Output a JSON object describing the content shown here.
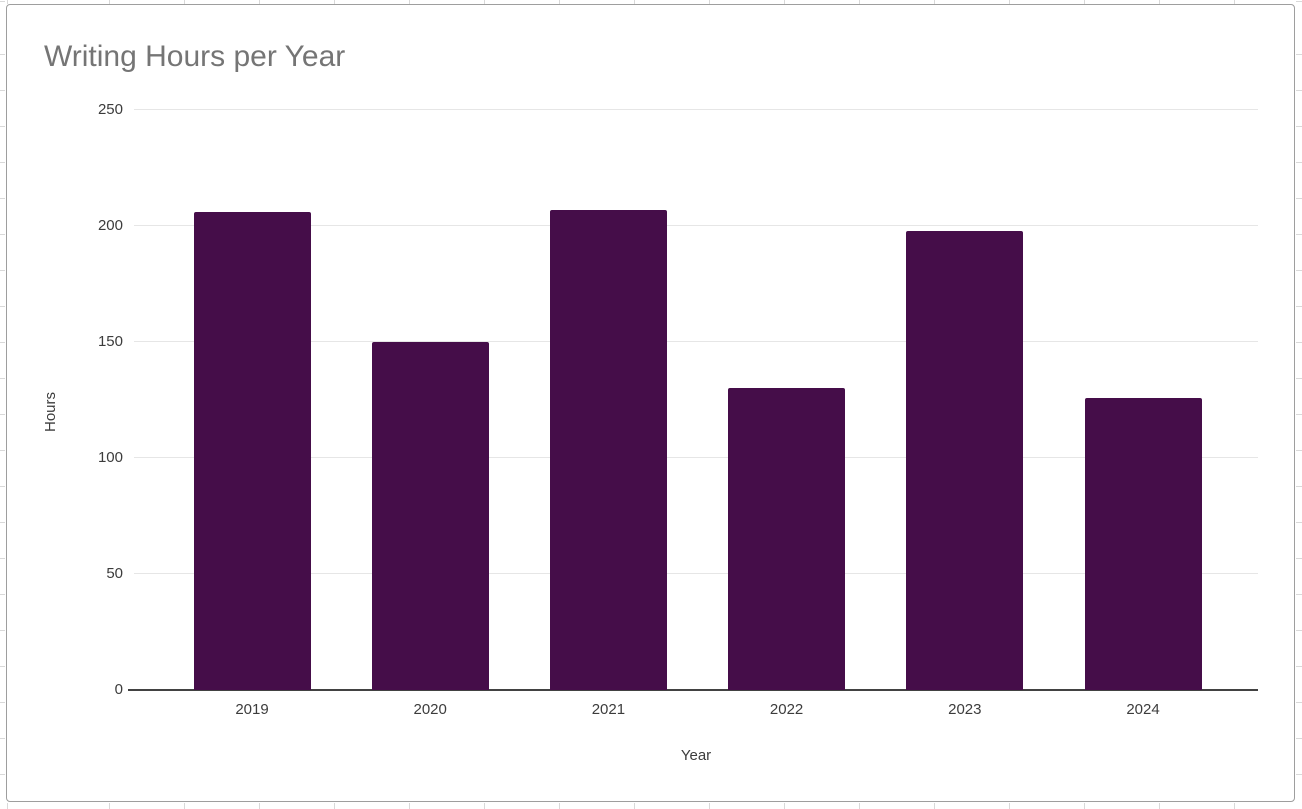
{
  "chart_data": {
    "type": "bar",
    "title": "Writing Hours per Year",
    "xlabel": "Year",
    "ylabel": "Hours",
    "categories": [
      "2019",
      "2020",
      "2021",
      "2022",
      "2023",
      "2024"
    ],
    "values": [
      206,
      150,
      207,
      130,
      198,
      126
    ],
    "ylim": [
      0,
      250
    ],
    "yticks": [
      0,
      50,
      100,
      150,
      200,
      250
    ],
    "grid": true,
    "legend": false,
    "bar_color": "#450d49"
  },
  "colors": {
    "bar": "#450d49",
    "title_text": "#757575",
    "axis_text": "#3c3c3c",
    "gridline": "#e6e6e6",
    "axis_line": "#424242",
    "card_border": "#9e9e9e",
    "sheet_gridline": "#d9d9d9",
    "background": "#ffffff"
  }
}
